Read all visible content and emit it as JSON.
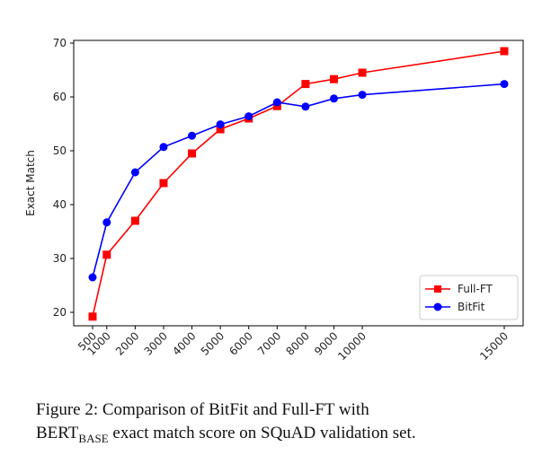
{
  "chart_data": {
    "type": "line",
    "x": [
      500,
      1000,
      2000,
      3000,
      4000,
      5000,
      6000,
      7000,
      8000,
      9000,
      10000,
      15000
    ],
    "xtick_labels": [
      "500",
      "1000",
      "2000",
      "3000",
      "4000",
      "5000",
      "6000",
      "7000",
      "8000",
      "9000",
      "10000",
      "15000"
    ],
    "ylabel": "Exact Match",
    "xlabel": "",
    "ylim": [
      17.5,
      70.5
    ],
    "yticks": [
      20,
      30,
      40,
      50,
      60,
      70
    ],
    "ytick_labels": [
      "20",
      "30",
      "40",
      "50",
      "60",
      "70"
    ],
    "legend_position": "lower-right",
    "grid": false,
    "series": [
      {
        "name": "Full-FT",
        "color": "#ff0000",
        "marker": "square",
        "values": [
          19.2,
          30.7,
          37.0,
          44.0,
          49.5,
          54.0,
          56.0,
          58.3,
          62.4,
          63.3,
          64.5,
          68.5
        ]
      },
      {
        "name": "BitFit",
        "color": "#0000ff",
        "marker": "circle",
        "values": [
          26.5,
          36.7,
          46.0,
          50.7,
          52.8,
          54.9,
          56.4,
          59.0,
          58.2,
          59.7,
          60.4,
          62.4
        ]
      }
    ]
  },
  "caption": {
    "prefix": "Figure 2:  Comparison of BitFit and Full-FT with",
    "model": "BERT",
    "model_sub": "BASE",
    "suffix": " exact match score on SQuAD validation set."
  }
}
